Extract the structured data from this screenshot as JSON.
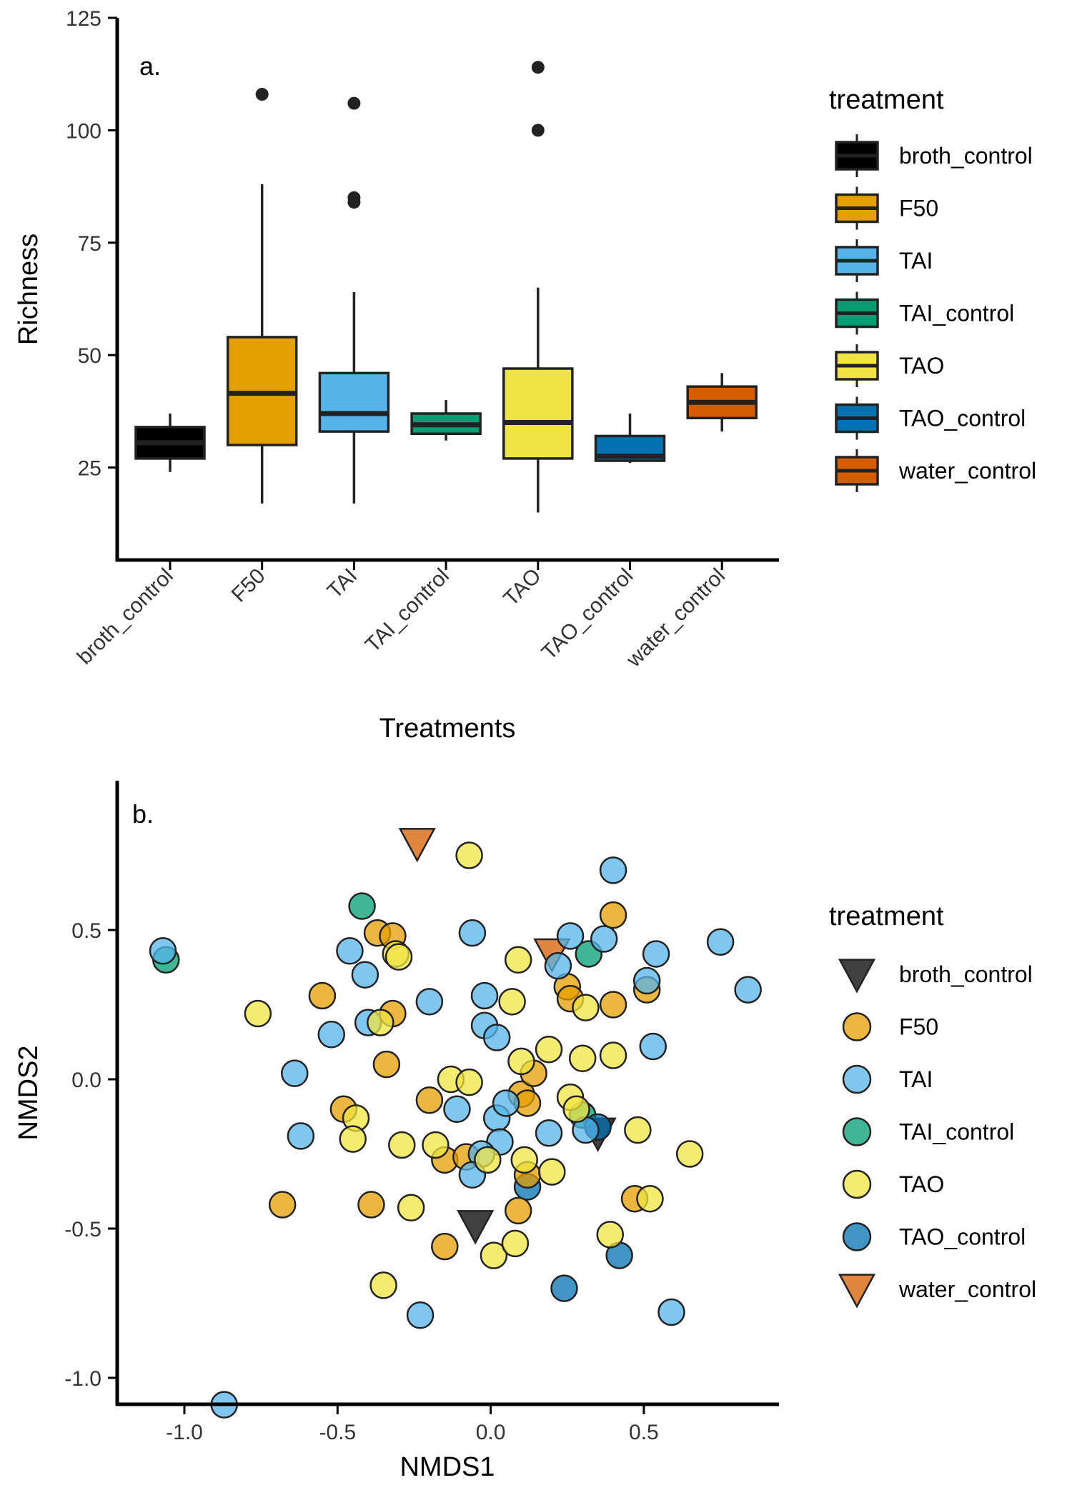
{
  "chart_data": [
    {
      "type": "box",
      "panel_label": "a.",
      "xlabel": "Treatments",
      "ylabel": "Richness",
      "ylim": [
        10,
        125
      ],
      "yticks": [
        25,
        50,
        75,
        100,
        125
      ],
      "categories": [
        "broth_control",
        "F50",
        "TAI",
        "TAI_control",
        "TAO",
        "TAO_control",
        "water_control"
      ],
      "boxes": [
        {
          "category": "broth_control",
          "lower_whisker": 24,
          "q1": 27,
          "median": 30.5,
          "q3": 34,
          "upper_whisker": 37,
          "outliers": [],
          "color": "#000000"
        },
        {
          "category": "F50",
          "lower_whisker": 17,
          "q1": 30,
          "median": 41.5,
          "q3": 54,
          "upper_whisker": 88,
          "outliers": [
            108
          ],
          "color": "#E69F00"
        },
        {
          "category": "TAI",
          "lower_whisker": 17,
          "q1": 33,
          "median": 37,
          "q3": 46,
          "upper_whisker": 64,
          "outliers": [
            84,
            85,
            106
          ],
          "color": "#56B4E9"
        },
        {
          "category": "TAI_control",
          "lower_whisker": 31,
          "q1": 32.5,
          "median": 34.5,
          "q3": 37,
          "upper_whisker": 40,
          "outliers": [],
          "color": "#009E73"
        },
        {
          "category": "TAO",
          "lower_whisker": 15,
          "q1": 27,
          "median": 35,
          "q3": 47,
          "upper_whisker": 65,
          "outliers": [
            100,
            114
          ],
          "color": "#F0E442"
        },
        {
          "category": "TAO_control",
          "lower_whisker": 26,
          "q1": 26.5,
          "median": 27.5,
          "q3": 32,
          "upper_whisker": 37,
          "outliers": [],
          "color": "#0072B2"
        },
        {
          "category": "water_control",
          "lower_whisker": 33,
          "q1": 36,
          "median": 39.5,
          "q3": 43,
          "upper_whisker": 46,
          "outliers": [],
          "color": "#D55E00"
        }
      ],
      "legend": {
        "title": "treatment",
        "position": "right",
        "entries": [
          "broth_control",
          "F50",
          "TAI",
          "TAI_control",
          "TAO",
          "TAO_control",
          "water_control"
        ]
      }
    },
    {
      "type": "scatter",
      "panel_label": "b.",
      "xlabel": "NMDS1",
      "ylabel": "NMDS2",
      "xlim": [
        -1.2,
        0.95
      ],
      "ylim": [
        -1.15,
        0.97
      ],
      "xticks": [
        -1.0,
        -0.5,
        0.0,
        0.5
      ],
      "yticks": [
        0.5,
        0.0,
        -0.5,
        -1.0
      ],
      "xtick_labels": [
        "-1.0",
        "-0.5",
        "0.0",
        "0.5"
      ],
      "ytick_labels": [
        "0.5",
        "0.0",
        "-0.5",
        "-1.0"
      ],
      "legend": {
        "title": "treatment",
        "position": "right",
        "entries": [
          "broth_control",
          "F50",
          "TAI",
          "TAI_control",
          "TAO",
          "TAO_control",
          "water_control"
        ]
      },
      "series": [
        {
          "name": "broth_control",
          "color": "#000000",
          "shape": "triangle-down",
          "points": [
            [
              -0.05,
              -0.49
            ],
            [
              0.35,
              -0.18
            ]
          ]
        },
        {
          "name": "water_control",
          "color": "#D55E00",
          "shape": "triangle-down",
          "points": [
            [
              -0.24,
              0.79
            ],
            [
              0.2,
              0.42
            ]
          ]
        },
        {
          "name": "TAI_control",
          "color": "#009E73",
          "shape": "circle",
          "points": [
            [
              -1.06,
              0.4
            ],
            [
              -0.42,
              0.58
            ],
            [
              0.32,
              0.42
            ],
            [
              0.3,
              -0.12
            ]
          ]
        },
        {
          "name": "TAO_control",
          "color": "#0072B2",
          "shape": "circle",
          "points": [
            [
              0.12,
              -0.36
            ],
            [
              0.35,
              -0.16
            ],
            [
              0.24,
              -0.7
            ],
            [
              0.42,
              -0.59
            ]
          ]
        },
        {
          "name": "F50",
          "color": "#E69F00",
          "shape": "circle",
          "points": [
            [
              -0.37,
              0.49
            ],
            [
              -0.32,
              0.48
            ],
            [
              -0.55,
              0.28
            ],
            [
              -0.32,
              0.22
            ],
            [
              -0.34,
              0.05
            ],
            [
              -0.48,
              -0.1
            ],
            [
              -0.2,
              -0.07
            ],
            [
              -0.15,
              -0.27
            ],
            [
              -0.08,
              -0.26
            ],
            [
              0.1,
              -0.05
            ],
            [
              0.12,
              -0.08
            ],
            [
              0.14,
              0.02
            ],
            [
              0.25,
              0.31
            ],
            [
              0.26,
              0.27
            ],
            [
              0.4,
              0.55
            ],
            [
              0.4,
              0.25
            ],
            [
              0.51,
              0.3
            ],
            [
              0.47,
              -0.4
            ],
            [
              -0.68,
              -0.42
            ],
            [
              -0.39,
              -0.42
            ],
            [
              -0.15,
              -0.56
            ],
            [
              0.09,
              -0.44
            ],
            [
              0.12,
              -0.32
            ]
          ]
        },
        {
          "name": "TAI",
          "color": "#56B4E9",
          "shape": "circle",
          "points": [
            [
              -1.07,
              0.43
            ],
            [
              -0.46,
              0.43
            ],
            [
              -0.41,
              0.35
            ],
            [
              -0.06,
              0.49
            ],
            [
              -0.52,
              0.15
            ],
            [
              -0.4,
              0.19
            ],
            [
              -0.2,
              0.26
            ],
            [
              -0.02,
              0.28
            ],
            [
              -0.02,
              0.18
            ],
            [
              0.02,
              0.14
            ],
            [
              -0.64,
              0.02
            ],
            [
              -0.62,
              -0.19
            ],
            [
              -0.11,
              -0.1
            ],
            [
              0.02,
              -0.13
            ],
            [
              0.05,
              -0.08
            ],
            [
              0.03,
              -0.21
            ],
            [
              -0.03,
              -0.25
            ],
            [
              -0.06,
              -0.32
            ],
            [
              0.19,
              -0.18
            ],
            [
              0.26,
              0.48
            ],
            [
              0.22,
              0.38
            ],
            [
              0.37,
              0.47
            ],
            [
              0.4,
              0.7
            ],
            [
              0.51,
              0.33
            ],
            [
              0.54,
              0.42
            ],
            [
              0.53,
              0.11
            ],
            [
              0.31,
              -0.17
            ],
            [
              0.75,
              0.46
            ],
            [
              0.84,
              0.3
            ],
            [
              -0.23,
              -0.79
            ],
            [
              0.59,
              -0.78
            ],
            [
              -0.87,
              -1.09
            ]
          ]
        },
        {
          "name": "TAO",
          "color": "#F0E442",
          "shape": "circle",
          "points": [
            [
              -0.07,
              0.75
            ],
            [
              -0.31,
              0.42
            ],
            [
              -0.3,
              0.41
            ],
            [
              -0.76,
              0.22
            ],
            [
              -0.36,
              0.19
            ],
            [
              0.09,
              0.4
            ],
            [
              0.07,
              0.26
            ],
            [
              0.19,
              0.1
            ],
            [
              0.1,
              0.06
            ],
            [
              0.31,
              0.24
            ],
            [
              0.3,
              0.07
            ],
            [
              0.4,
              0.08
            ],
            [
              -0.13,
              0.0
            ],
            [
              -0.07,
              -0.01
            ],
            [
              0.26,
              -0.06
            ],
            [
              0.28,
              -0.1
            ],
            [
              -0.44,
              -0.13
            ],
            [
              -0.45,
              -0.2
            ],
            [
              -0.29,
              -0.22
            ],
            [
              -0.18,
              -0.22
            ],
            [
              -0.01,
              -0.27
            ],
            [
              0.11,
              -0.27
            ],
            [
              0.2,
              -0.31
            ],
            [
              0.48,
              -0.17
            ],
            [
              0.65,
              -0.25
            ],
            [
              0.52,
              -0.4
            ],
            [
              -0.26,
              -0.43
            ],
            [
              0.01,
              -0.59
            ],
            [
              0.08,
              -0.55
            ],
            [
              0.39,
              -0.52
            ],
            [
              -0.35,
              -0.69
            ]
          ]
        }
      ]
    }
  ]
}
